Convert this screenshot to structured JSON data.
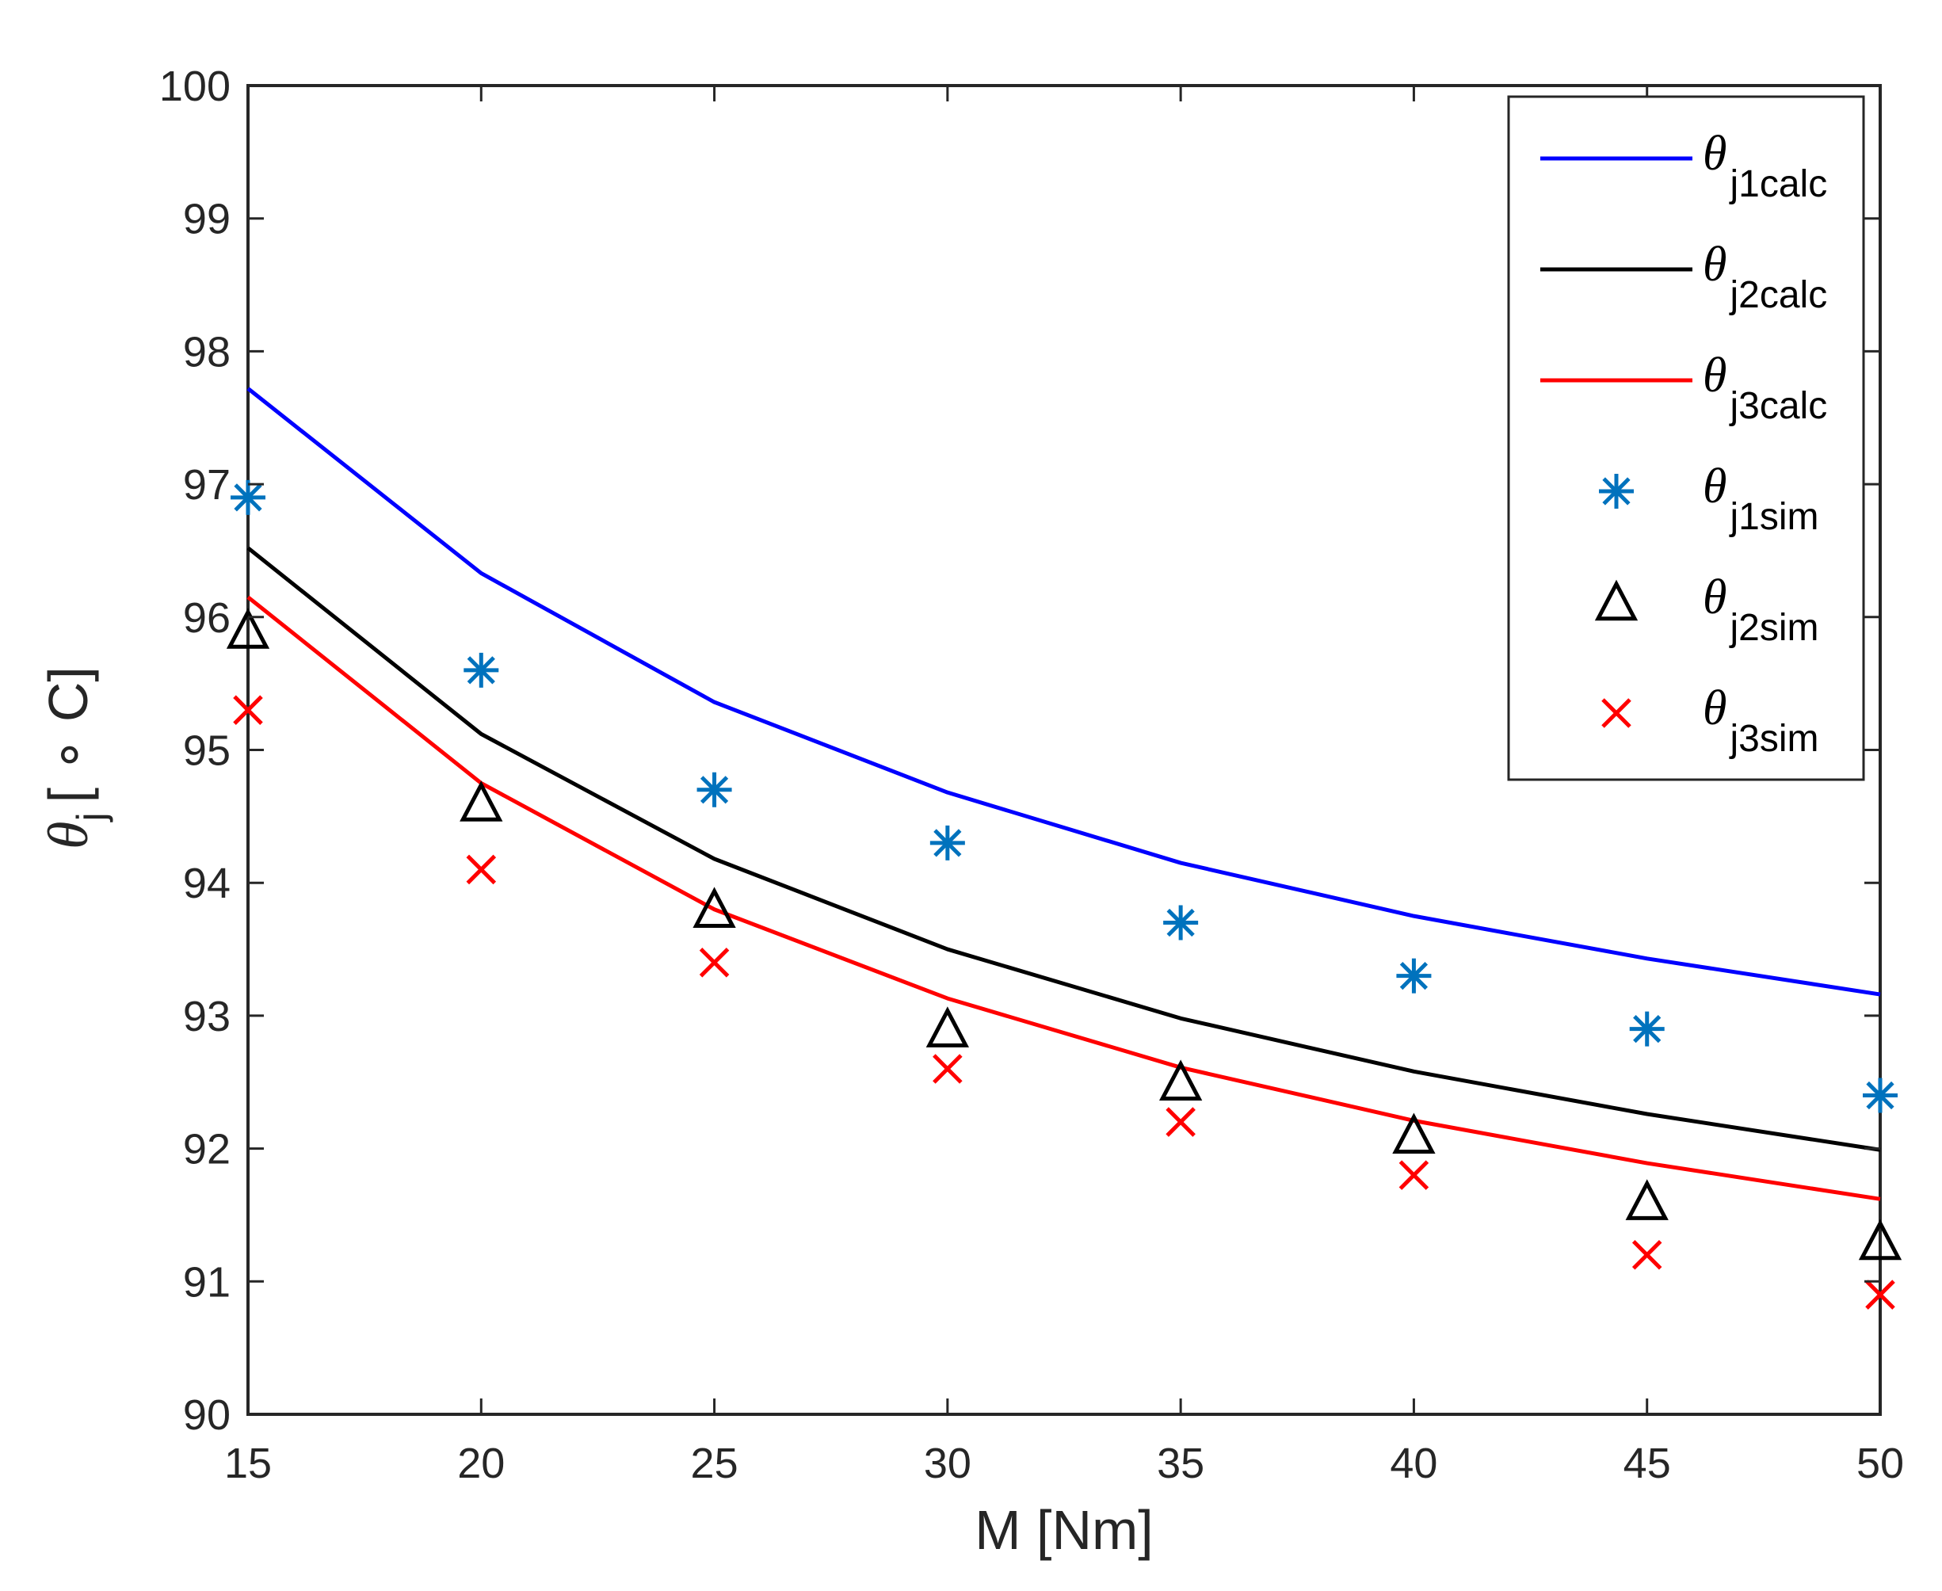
{
  "chart_data": {
    "type": "line",
    "title": "",
    "xlabel": "M [Nm]",
    "ylabel": {
      "symbol": "θ",
      "subscript": "j",
      "unit": "[ ∘ C]"
    },
    "xlim": [
      15,
      50
    ],
    "ylim": [
      90,
      100
    ],
    "xticks": [
      "15",
      "20",
      "25",
      "30",
      "35",
      "40",
      "45",
      "50"
    ],
    "yticks": [
      "90",
      "91",
      "92",
      "93",
      "94",
      "95",
      "96",
      "97",
      "98",
      "99",
      "100"
    ],
    "grid": false,
    "legend_position": "top-right",
    "x": [
      15,
      20,
      25,
      30,
      35,
      40,
      45,
      50
    ],
    "series": [
      {
        "name": "θj1calc",
        "symbol": "θ",
        "sub": "j1calc",
        "kind": "line",
        "color": "#0000ff",
        "values": [
          97.72,
          96.33,
          95.36,
          94.68,
          94.15,
          93.75,
          93.43,
          93.16
        ]
      },
      {
        "name": "θj2calc",
        "symbol": "θ",
        "sub": "j2calc",
        "kind": "line",
        "color": "#000000",
        "values": [
          96.52,
          95.12,
          94.18,
          93.5,
          92.98,
          92.58,
          92.26,
          91.99
        ]
      },
      {
        "name": "θj3calc",
        "symbol": "θ",
        "sub": "j3calc",
        "kind": "line",
        "color": "#ff0000",
        "values": [
          96.15,
          94.75,
          93.8,
          93.13,
          92.61,
          92.21,
          91.89,
          91.62
        ]
      },
      {
        "name": "θj1sim",
        "symbol": "θ",
        "sub": "j1sim",
        "kind": "marker",
        "marker": "asterisk",
        "color": "#0072bd",
        "values": [
          96.9,
          95.6,
          94.7,
          94.3,
          93.7,
          93.3,
          92.9,
          92.4
        ]
      },
      {
        "name": "θj2sim",
        "symbol": "θ",
        "sub": "j2sim",
        "kind": "marker",
        "marker": "triangle",
        "color": "#000000",
        "values": [
          95.9,
          94.6,
          93.8,
          92.9,
          92.5,
          92.1,
          91.6,
          91.3
        ]
      },
      {
        "name": "θj3sim",
        "symbol": "θ",
        "sub": "j3sim",
        "kind": "marker",
        "marker": "x",
        "color": "#ff0000",
        "values": [
          95.3,
          94.1,
          93.4,
          92.6,
          92.2,
          91.8,
          91.2,
          90.9
        ]
      }
    ]
  }
}
